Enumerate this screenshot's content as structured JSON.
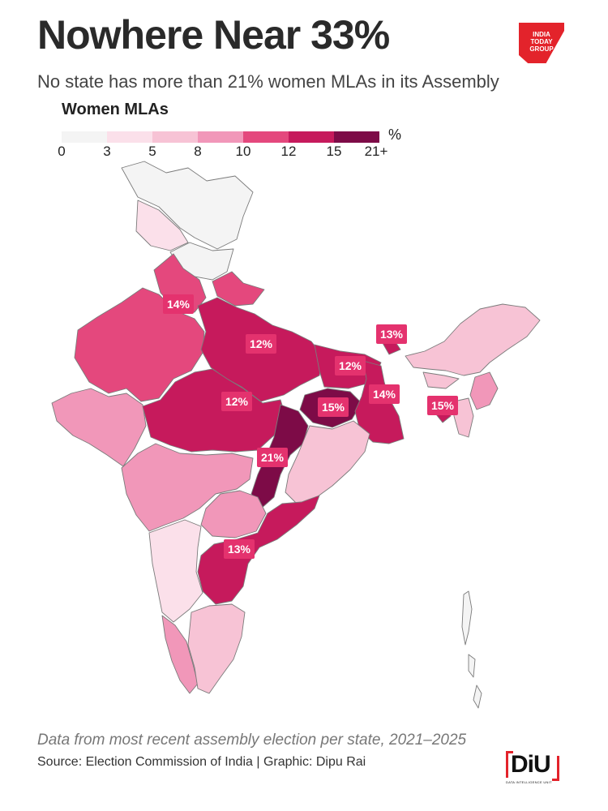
{
  "title": "Nowhere Near 33%",
  "subtitle": "No state has more than 21% women MLAs in its Assembly",
  "legend": {
    "title": "Women MLAs",
    "unit": "%",
    "ticks": [
      "0",
      "3",
      "5",
      "8",
      "10",
      "12",
      "15",
      "21+"
    ],
    "colors": [
      "#f4f4f4",
      "#fbe0ea",
      "#f7c3d5",
      "#f197b9",
      "#e4487d",
      "#c61a5c",
      "#7d0b47"
    ]
  },
  "brand_logo": {
    "text": "INDIA TODAY GROUP",
    "color": "#e3232b"
  },
  "footer": {
    "note": "Data from most recent assembly election per state, 2021–2025",
    "source": "Source: Election Commission of India | Graphic: Dipu Rai"
  },
  "diu_logo": {
    "text": "DiU",
    "subtitle": "DATA INTELLIGENCE UNIT"
  },
  "chart_data": {
    "type": "choropleth",
    "unit": "%",
    "labeled_values": [
      {
        "label": "14%",
        "value": 14
      },
      {
        "label": "12%",
        "value": 12
      },
      {
        "label": "12%",
        "value": 12
      },
      {
        "label": "12%",
        "value": 12
      },
      {
        "label": "13%",
        "value": 13
      },
      {
        "label": "14%",
        "value": 14
      },
      {
        "label": "15%",
        "value": 15
      },
      {
        "label": "15%",
        "value": 15
      },
      {
        "label": "21%",
        "value": 21
      },
      {
        "label": "13%",
        "value": 13
      }
    ]
  }
}
